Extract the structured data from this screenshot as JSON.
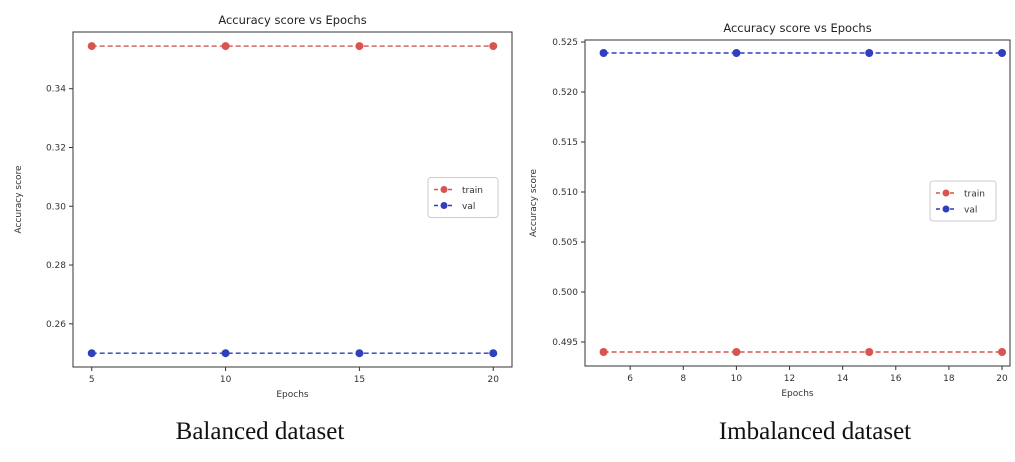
{
  "charts": [
    {
      "caption": "Balanced dataset",
      "chart_data": {
        "type": "line",
        "title": "Accuracy score vs Epochs",
        "xlabel": "Epochs",
        "ylabel": "Accuracy score",
        "x": [
          5,
          10,
          15,
          20
        ],
        "xticks": [
          5,
          10,
          15,
          20
        ],
        "yticks": [
          0.26,
          0.28,
          0.3,
          0.32,
          0.34
        ],
        "ytick_labels": [
          "0.26",
          "0.28",
          "0.30",
          "0.32",
          "0.34"
        ],
        "xlim": [
          4.3,
          20.7
        ],
        "ylim": [
          0.2453,
          0.3593
        ],
        "grid": false,
        "legend_position": "center right",
        "series": [
          {
            "name": "train",
            "values": [
              0.3545,
              0.3545,
              0.3545,
              0.3545
            ],
            "color": "#d9534f"
          },
          {
            "name": "val",
            "values": [
              0.25,
              0.25,
              0.25,
              0.25
            ],
            "color": "#2f3fbd"
          }
        ]
      }
    },
    {
      "caption": "Imbalanced dataset",
      "chart_data": {
        "type": "line",
        "title": "Accuracy score vs Epochs",
        "xlabel": "Epochs",
        "ylabel": "Accuracy score",
        "x": [
          5,
          10,
          15,
          20
        ],
        "xticks": [
          6,
          8,
          10,
          12,
          14,
          16,
          18,
          20
        ],
        "yticks": [
          0.495,
          0.5,
          0.505,
          0.51,
          0.515,
          0.52,
          0.525
        ],
        "ytick_labels": [
          "0.495",
          "0.500",
          "0.505",
          "0.510",
          "0.515",
          "0.520",
          "0.525"
        ],
        "xlim": [
          4.3,
          20.3
        ],
        "ylim": [
          0.4926,
          0.5252
        ],
        "grid": false,
        "legend_position": "center right",
        "series": [
          {
            "name": "train",
            "values": [
              0.494,
              0.494,
              0.494,
              0.494
            ],
            "color": "#d9534f"
          },
          {
            "name": "val",
            "values": [
              0.5239,
              0.5239,
              0.5239,
              0.5239
            ],
            "color": "#2f3fbd"
          }
        ]
      }
    }
  ]
}
